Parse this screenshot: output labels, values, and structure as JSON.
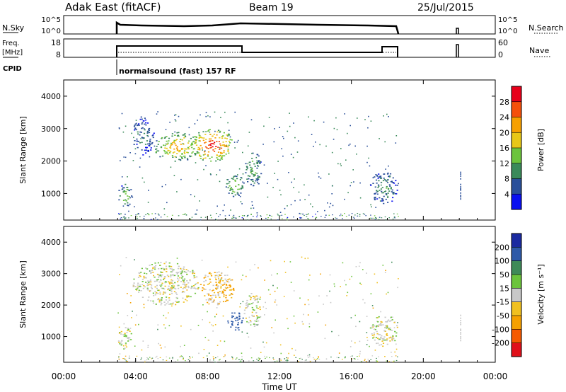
{
  "header": {
    "station": "Adak East (fitACF)",
    "beam": "Beam 19",
    "date": "25/Jul/2015"
  },
  "top_panels": {
    "nsky": {
      "label": "N.Sky",
      "ticks": [
        "10^5",
        "10^0"
      ],
      "right_ticks": [
        "10^5",
        "10^0"
      ],
      "right_label": "N.Search"
    },
    "freq": {
      "label_line1": "Freq.",
      "label_line2": "[MHz]",
      "ticks": [
        18,
        8
      ],
      "right_ticks": [
        60,
        0
      ],
      "right_label": "Nave"
    },
    "cpid": {
      "label": "CPID",
      "text": "normalsound (fast) 157 RF"
    }
  },
  "power_colorbar": {
    "label": "Power [dB]",
    "ticks": [
      28,
      24,
      20,
      16,
      12,
      8,
      4
    ],
    "colors": [
      "#e8001a",
      "#f5500b",
      "#f7a000",
      "#e8c817",
      "#6cc43c",
      "#3a8a5a",
      "#2a4f9a",
      "#0a10f0"
    ]
  },
  "velocity_colorbar": {
    "label": "Velocity [m s⁻¹]",
    "ticks": [
      200,
      100,
      50,
      15,
      -15,
      -50,
      -100,
      -200
    ],
    "colors": [
      "#1a2aa0",
      "#2e5aa8",
      "#3f8a58",
      "#6cc43c",
      "#c8c8c8",
      "#f0c020",
      "#f5a000",
      "#f55a00",
      "#e0101a"
    ]
  },
  "chart_data": [
    {
      "type": "heatmap",
      "title": "",
      "xlabel": "Time UT",
      "ylabel": "Slant Range [km]",
      "x_ticks": [
        "00:00",
        "04:00",
        "08:00",
        "12:00",
        "16:00",
        "20:00",
        "00:00"
      ],
      "y_ticks": [
        1000,
        2000,
        3000,
        4000
      ],
      "xlim_hours": [
        0,
        24
      ],
      "ylim_km": [
        180,
        4500
      ],
      "data_span_hours": [
        3.0,
        18.6
      ],
      "echo_regions": [
        {
          "t": [
            3.0,
            3.8
          ],
          "range_km": [
            600,
            1300
          ],
          "power_db": 14
        },
        {
          "t": [
            3.8,
            5.0
          ],
          "range_km": [
            2200,
            3400
          ],
          "power_db": 8
        },
        {
          "t": [
            5.0,
            7.5
          ],
          "range_km": [
            2000,
            2900
          ],
          "power_db": 20
        },
        {
          "t": [
            7.0,
            9.5
          ],
          "range_km": [
            2000,
            3000
          ],
          "power_db": 26
        },
        {
          "t": [
            9.0,
            10.0
          ],
          "range_km": [
            900,
            1600
          ],
          "power_db": 14
        },
        {
          "t": [
            10.0,
            11.0
          ],
          "range_km": [
            1200,
            2300
          ],
          "power_db": 12
        },
        {
          "t": [
            17.0,
            18.6
          ],
          "range_km": [
            700,
            1700
          ],
          "power_db": 10
        }
      ]
    },
    {
      "type": "heatmap",
      "title": "",
      "xlabel": "Time UT",
      "ylabel": "Slant Range [km]",
      "x_ticks": [
        "00:00",
        "04:00",
        "08:00",
        "12:00",
        "16:00",
        "20:00",
        "00:00"
      ],
      "y_ticks": [
        1000,
        2000,
        3000,
        4000
      ],
      "xlim_hours": [
        0,
        24
      ],
      "ylim_km": [
        180,
        4500
      ],
      "echo_regions": [
        {
          "t": [
            3.0,
            3.8
          ],
          "range_km": [
            600,
            1300
          ],
          "velocity": 0
        },
        {
          "t": [
            3.8,
            7.5
          ],
          "range_km": [
            2000,
            3400
          ],
          "velocity": 0
        },
        {
          "t": [
            7.5,
            9.5
          ],
          "range_km": [
            2000,
            3100
          ],
          "velocity": -30
        },
        {
          "t": [
            9.0,
            10.0
          ],
          "range_km": [
            1200,
            1800
          ],
          "velocity": 120
        },
        {
          "t": [
            10.0,
            11.0
          ],
          "range_km": [
            1300,
            2400
          ],
          "velocity": 0
        },
        {
          "t": [
            17.0,
            18.6
          ],
          "range_km": [
            700,
            1700
          ],
          "velocity": 0
        }
      ]
    }
  ]
}
